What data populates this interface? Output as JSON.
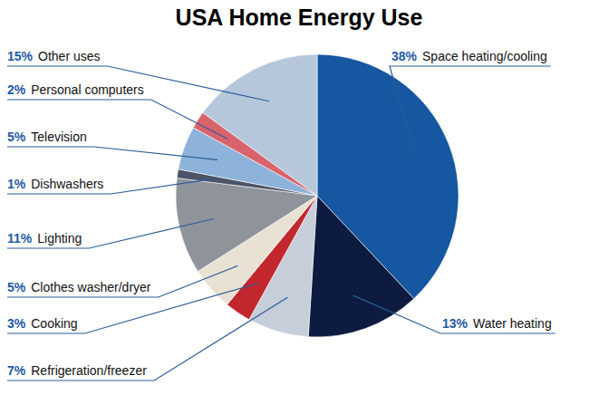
{
  "chart_data": {
    "type": "pie",
    "title": "USA Home Energy Use",
    "categories": [
      "Space heating/cooling",
      "Water heating",
      "Refrigeration/freezer",
      "Cooking",
      "Clothes washer/dryer",
      "Lighting",
      "Dishwashers",
      "Television",
      "Personal computers",
      "Other uses"
    ],
    "values": [
      38,
      13,
      7,
      3,
      5,
      11,
      1,
      5,
      2,
      15
    ],
    "value_labels": [
      "38%",
      "13%",
      "7%",
      "3%",
      "5%",
      "11%",
      "1%",
      "5%",
      "2%",
      "15%"
    ],
    "colors": [
      "#1557a0",
      "#0d1b40",
      "#c6ceda",
      "#c1272d",
      "#e9e2d3",
      "#8f949b",
      "#4a5466",
      "#8db3da",
      "#d9636b",
      "#b6c7db"
    ],
    "data_labels": true
  }
}
